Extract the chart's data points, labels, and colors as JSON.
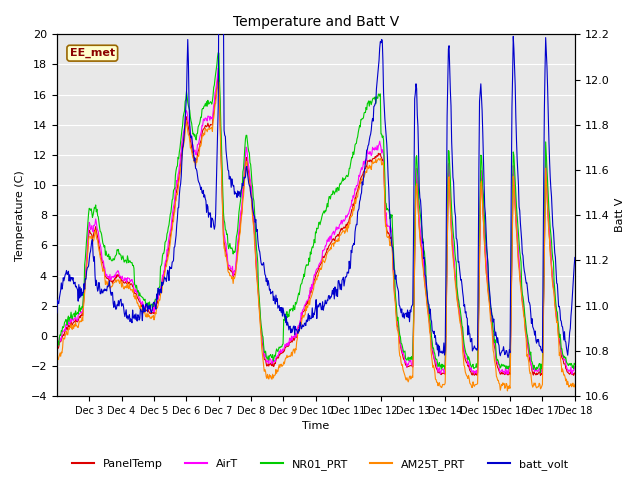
{
  "title": "Temperature and Batt V",
  "xlabel": "Time",
  "ylabel_left": "Temperature (C)",
  "ylabel_right": "Batt V",
  "ylim_left": [
    -4,
    20
  ],
  "ylim_right": [
    10.6,
    12.2
  ],
  "annotation": "EE_met",
  "bg_color": "#e8e8e8",
  "legend": [
    {
      "label": "PanelTemp",
      "color": "#dd0000"
    },
    {
      "label": "AirT",
      "color": "#ff00ff"
    },
    {
      "label": "NR01_PRT",
      "color": "#00cc00"
    },
    {
      "label": "AM25T_PRT",
      "color": "#ff8800"
    },
    {
      "label": "batt_volt",
      "color": "#0000cc"
    }
  ],
  "x_tick_labels": [
    "Dec 3",
    "Dec 4",
    "Dec 5",
    "Dec 6",
    "Dec 7",
    "Dec 8",
    "Dec 9",
    "Dec 10",
    "Dec 11",
    "Dec 12",
    "Dec 13",
    "Dec 14",
    "Dec 15",
    "Dec 16",
    "Dec 17",
    "Dec 18"
  ],
  "x_tick_positions": [
    3,
    4,
    5,
    6,
    7,
    8,
    9,
    10,
    11,
    12,
    13,
    14,
    15,
    16,
    17,
    18
  ]
}
